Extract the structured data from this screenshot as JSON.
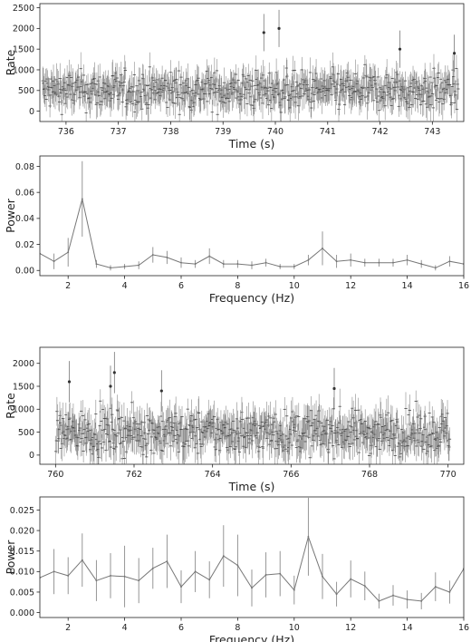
{
  "chart_data": [
    {
      "type": "scatter",
      "xlabel": "Time (s)",
      "ylabel": "Rate",
      "xlim": [
        735.5,
        743.6
      ],
      "ylim": [
        -250,
        2600
      ],
      "xticks": [
        "736",
        "737",
        "738",
        "739",
        "740",
        "741",
        "742",
        "743"
      ],
      "yticks": [
        "0",
        "500",
        "1000",
        "1500",
        "2000",
        "2500"
      ],
      "grid": false,
      "series": [
        {
          "x_range": [
            735.55,
            743.5
          ],
          "y_level_typical": 500,
          "y_range_typical": [
            0,
            1200
          ],
          "error_bars": true,
          "color": "#555555",
          "points": [
            {
              "x": 739.78,
              "y": 1900
            },
            {
              "x": 740.07,
              "y": 2000
            },
            {
              "x": 742.38,
              "y": 1500
            },
            {
              "x": 743.42,
              "y": 1400
            }
          ]
        }
      ]
    },
    {
      "type": "line",
      "xlabel": "Frequency (Hz)",
      "ylabel": "Power",
      "xlim": [
        1,
        16
      ],
      "ylim": [
        -0.004,
        0.088
      ],
      "xticks": [
        "2",
        "4",
        "6",
        "8",
        "10",
        "12",
        "14",
        "16"
      ],
      "yticks": [
        "0.00",
        "0.02",
        "0.04",
        "0.06",
        "0.08"
      ],
      "grid": false,
      "series": [
        {
          "color": "#777777",
          "x": [
            1.0,
            1.5,
            2.0,
            2.5,
            3.0,
            3.5,
            4.0,
            4.5,
            5.0,
            5.5,
            6.0,
            6.5,
            7.0,
            7.5,
            8.0,
            8.5,
            9.0,
            9.5,
            10.0,
            10.5,
            11.0,
            11.5,
            12.0,
            12.5,
            13.0,
            13.5,
            14.0,
            14.5,
            15.0,
            15.5,
            16.0
          ],
          "y": [
            0.013,
            0.007,
            0.014,
            0.055,
            0.005,
            0.002,
            0.003,
            0.004,
            0.012,
            0.01,
            0.006,
            0.005,
            0.011,
            0.005,
            0.005,
            0.004,
            0.006,
            0.003,
            0.003,
            0.008,
            0.017,
            0.007,
            0.008,
            0.006,
            0.006,
            0.006,
            0.008,
            0.005,
            0.002,
            0.007,
            0.005
          ],
          "err": [
            0.0,
            0.006,
            0.011,
            0.029,
            0.003,
            0.002,
            0.002,
            0.003,
            0.006,
            0.005,
            0.004,
            0.003,
            0.006,
            0.003,
            0.003,
            0.003,
            0.003,
            0.002,
            0.002,
            0.004,
            0.013,
            0.005,
            0.005,
            0.003,
            0.003,
            0.003,
            0.004,
            0.003,
            0.002,
            0.004,
            0.0
          ]
        }
      ]
    },
    {
      "type": "scatter",
      "xlabel": "Time (s)",
      "ylabel": "Rate",
      "xlim": [
        759.6,
        770.4
      ],
      "ylim": [
        -200,
        2350
      ],
      "xticks": [
        "760",
        "762",
        "764",
        "766",
        "768",
        "770"
      ],
      "yticks": [
        "0",
        "500",
        "1000",
        "1500",
        "2000"
      ],
      "grid": false,
      "series": [
        {
          "x_range": [
            760.0,
            770.05
          ],
          "y_level_typical": 500,
          "y_range_typical": [
            0,
            1200
          ],
          "error_bars": true,
          "color": "#555555",
          "points": [
            {
              "x": 760.35,
              "y": 1600
            },
            {
              "x": 761.4,
              "y": 1500
            },
            {
              "x": 761.5,
              "y": 1800
            },
            {
              "x": 762.7,
              "y": 1400
            },
            {
              "x": 767.1,
              "y": 1450
            }
          ]
        }
      ]
    },
    {
      "type": "line",
      "xlabel": "Frequency (Hz)",
      "ylabel": "Power",
      "xlim": [
        1,
        16
      ],
      "ylim": [
        -0.0012,
        0.0282
      ],
      "xticks": [
        "2",
        "4",
        "6",
        "8",
        "10",
        "12",
        "14",
        "16"
      ],
      "yticks": [
        "0.000",
        "0.005",
        "0.010",
        "0.015",
        "0.020",
        "0.025"
      ],
      "grid": false,
      "series": [
        {
          "color": "#777777",
          "x": [
            1.0,
            1.5,
            2.0,
            2.5,
            3.0,
            3.5,
            4.0,
            4.5,
            5.0,
            5.5,
            6.0,
            6.5,
            7.0,
            7.5,
            8.0,
            8.5,
            9.0,
            9.5,
            10.0,
            10.5,
            11.0,
            11.5,
            12.0,
            12.5,
            13.0,
            13.5,
            14.0,
            14.5,
            15.0,
            15.5,
            16.0
          ],
          "y": [
            0.0085,
            0.01,
            0.009,
            0.0128,
            0.0078,
            0.009,
            0.0088,
            0.0078,
            0.0108,
            0.0125,
            0.0063,
            0.01,
            0.008,
            0.0138,
            0.0115,
            0.006,
            0.0092,
            0.0095,
            0.0055,
            0.0185,
            0.0088,
            0.0045,
            0.0082,
            0.0065,
            0.0028,
            0.0042,
            0.0032,
            0.0028,
            0.0063,
            0.005,
            0.0107
          ],
          "err": [
            0.0,
            0.0055,
            0.0045,
            0.0065,
            0.005,
            0.0055,
            0.0075,
            0.0055,
            0.005,
            0.0065,
            0.004,
            0.005,
            0.0045,
            0.0075,
            0.0075,
            0.0045,
            0.0055,
            0.0055,
            0.0035,
            0.0095,
            0.0055,
            0.003,
            0.0045,
            0.0035,
            0.0018,
            0.0025,
            0.0022,
            0.002,
            0.0035,
            0.0028,
            0.0
          ]
        }
      ]
    }
  ]
}
